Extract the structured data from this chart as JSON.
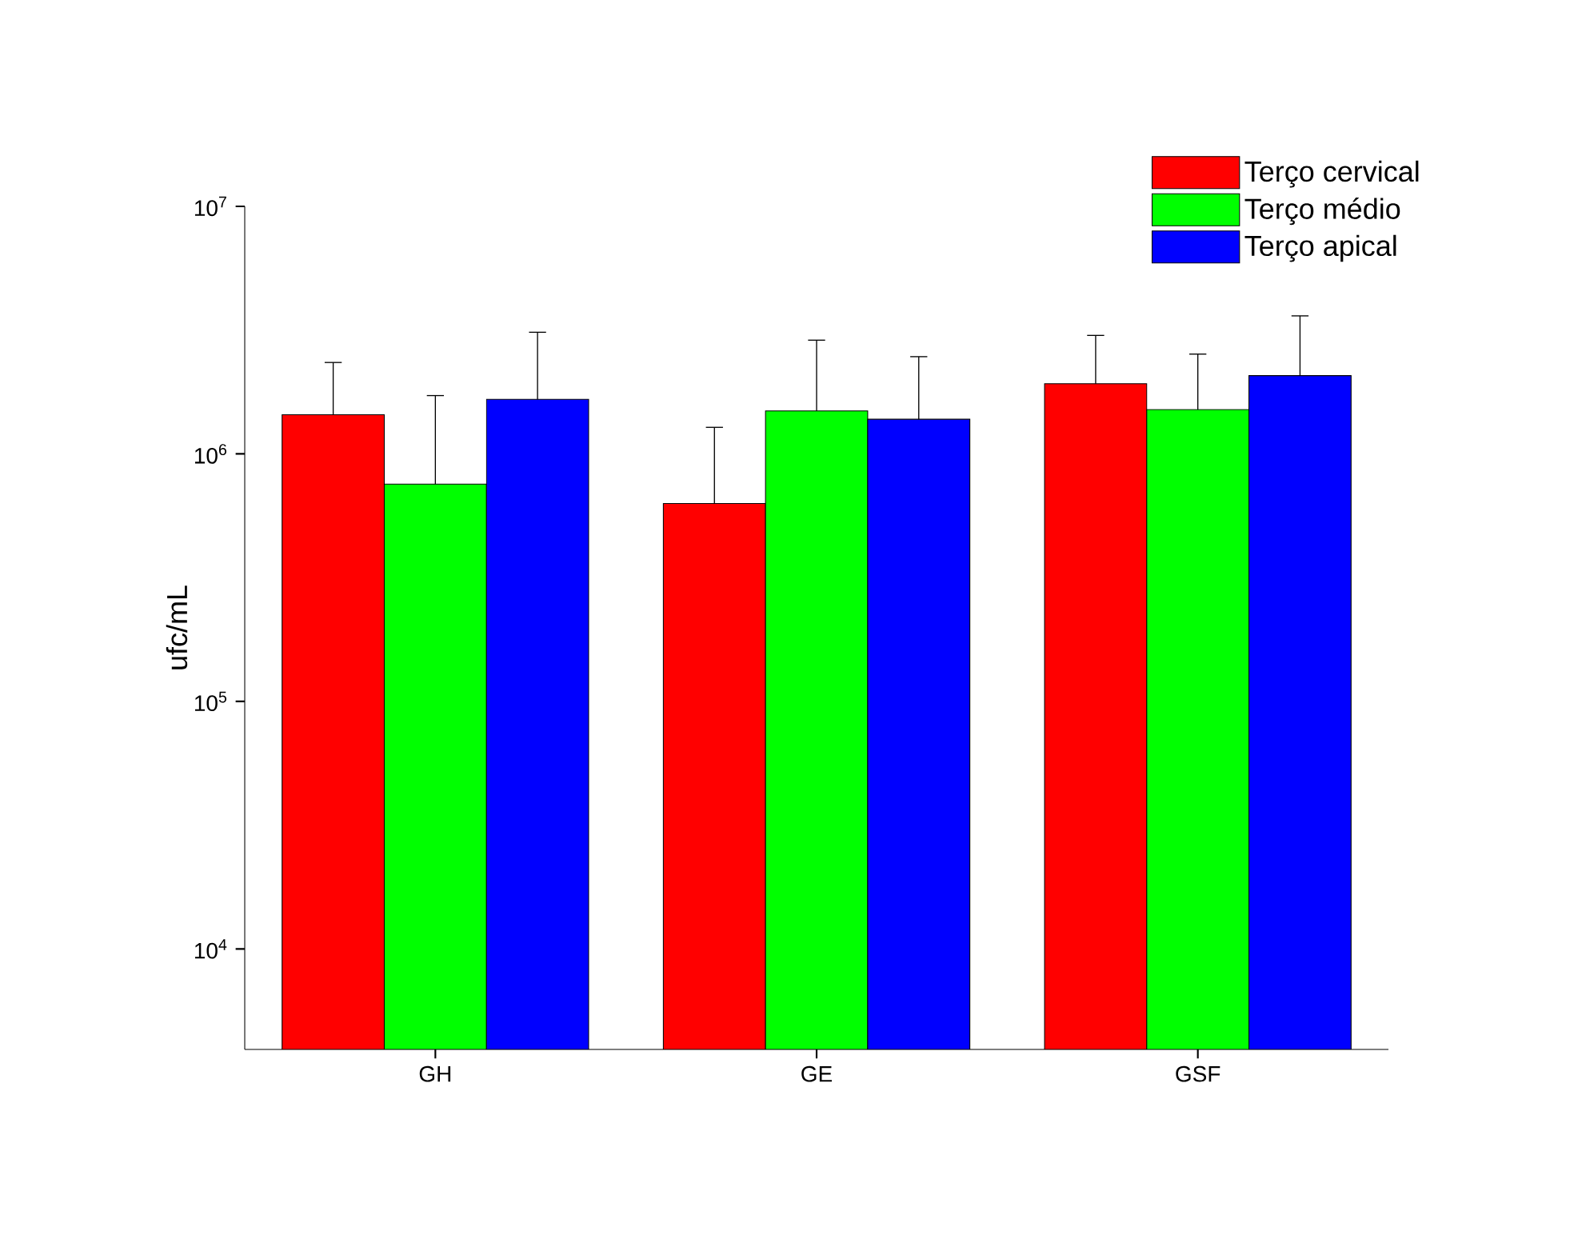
{
  "chart_data": {
    "type": "bar",
    "ylabel": "ufc/mL",
    "categories": [
      "GH",
      "GE",
      "GSF"
    ],
    "series": [
      {
        "name": "Terço cervical",
        "color": "#ff0000",
        "values": [
          1440000,
          630000,
          1920000
        ],
        "errors": [
          [
            1440000,
            2340000
          ],
          [
            630000,
            1280000
          ],
          [
            1920000,
            3010000
          ]
        ]
      },
      {
        "name": "Terço médio",
        "color": "#00ff00",
        "values": [
          755000,
          1490000,
          1510000
        ],
        "errors": [
          [
            755000,
            1720000
          ],
          [
            1490000,
            2880000
          ],
          [
            1510000,
            2530000
          ]
        ]
      },
      {
        "name": "Terço apical",
        "color": "#0000ff",
        "values": [
          1660000,
          1380000,
          2070000
        ],
        "errors": [
          [
            1660000,
            3100000
          ],
          [
            1380000,
            2470000
          ],
          [
            2070000,
            3610000
          ]
        ]
      }
    ],
    "log": "y",
    "ylim": [
      3930,
      10000000
    ],
    "yticks": [
      {
        "value": 10000,
        "label": "10$^{4}$"
      },
      {
        "value": 100000,
        "label": "10$^{5}$"
      },
      {
        "value": 1000000,
        "label": "10$^{6}$"
      },
      {
        "value": 10000000,
        "label": "10$^{7}$"
      }
    ],
    "grid": false,
    "legend": "top right"
  }
}
